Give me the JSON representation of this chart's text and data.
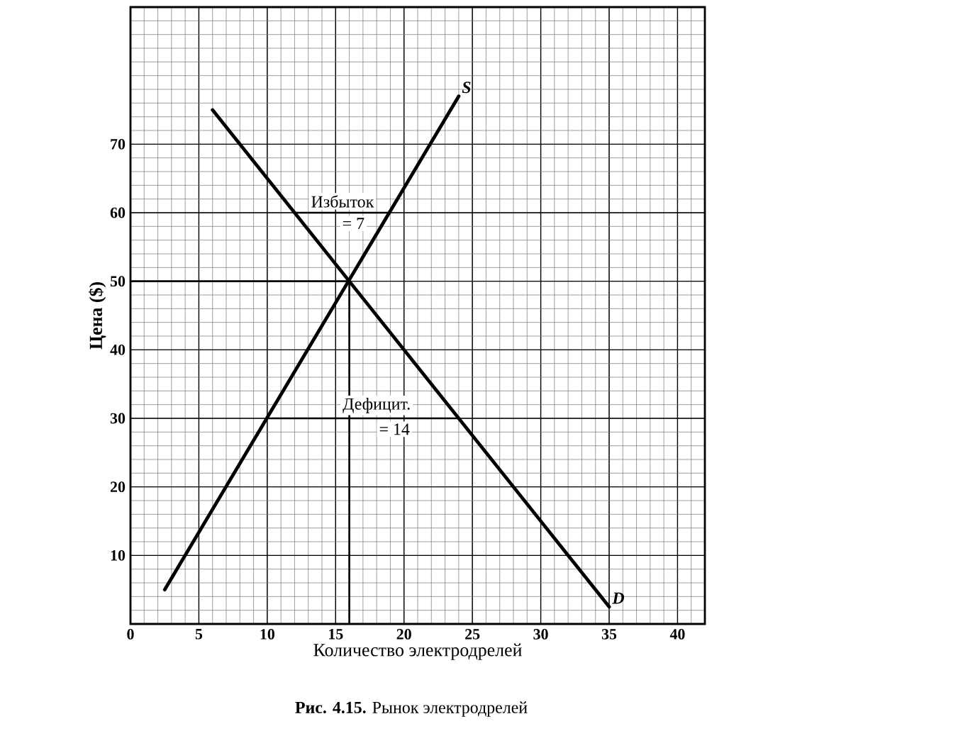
{
  "chart_data": {
    "type": "line",
    "xlabel": "Количество электродрелей",
    "ylabel": "Цена ($)",
    "xlim": [
      0,
      42
    ],
    "ylim": [
      0,
      90
    ],
    "xticks": [
      0,
      5,
      10,
      15,
      20,
      25,
      30,
      35,
      40
    ],
    "yticks": [
      10,
      20,
      30,
      40,
      50,
      60,
      70
    ],
    "grid": true,
    "series": [
      {
        "name": "S",
        "color": "#000000",
        "x": [
          2.5,
          24
        ],
        "values": [
          5,
          77
        ]
      },
      {
        "name": "D",
        "color": "#000000",
        "x": [
          6,
          35
        ],
        "values": [
          75,
          2.5
        ]
      },
      {
        "color": "#000000",
        "x": [
          0,
          16,
          16
        ],
        "values": [
          50,
          50,
          0
        ]
      },
      {
        "color": "#000000",
        "x": [
          12,
          19
        ],
        "values": [
          60,
          60
        ]
      },
      {
        "color": "#000000",
        "x": [
          10,
          24
        ],
        "values": [
          30,
          30
        ]
      }
    ],
    "annotations": [
      {
        "text": "Избыток",
        "x": 15.5,
        "y": 60
      },
      {
        "text": "= 7",
        "x": 16.3,
        "y": 60
      },
      {
        "text": "Дефицит.",
        "x": 18,
        "y": 30
      },
      {
        "text": "= 14",
        "x": 19.3,
        "y": 30
      },
      "**Рис. 4.15.** Рынок электродрелей"
    ]
  }
}
